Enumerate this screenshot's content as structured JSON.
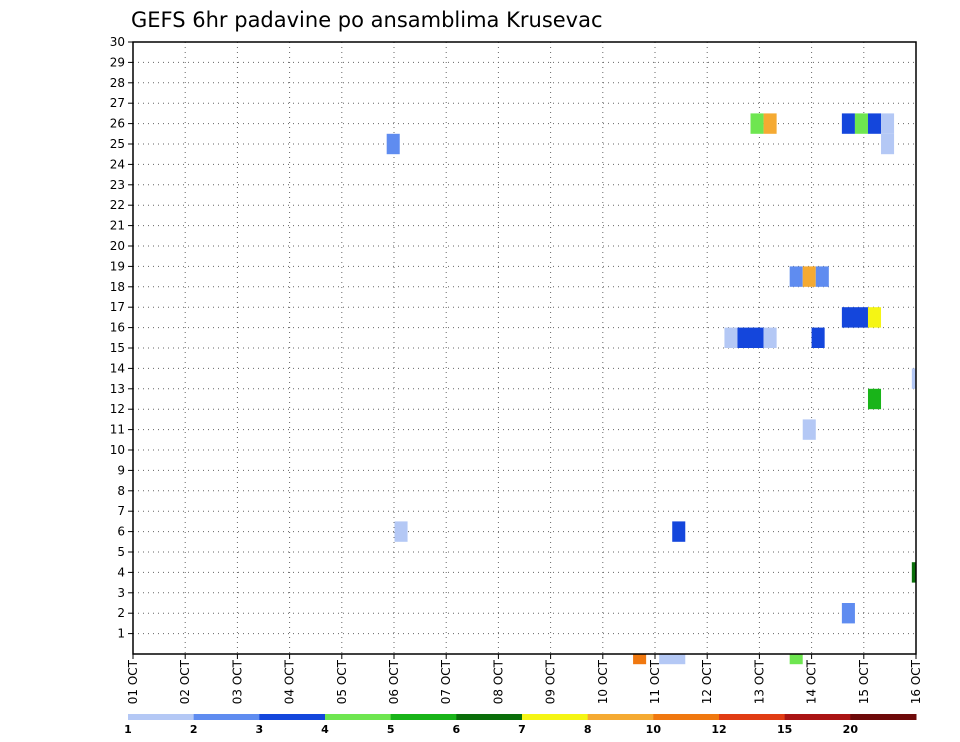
{
  "chart_data": {
    "type": "heatmap",
    "title": "GEFS 6hr padavine po ansamblima Krusevac",
    "xlabel": "",
    "ylabel": "",
    "x_tick_labels": [
      "01 OCT",
      "02 OCT",
      "03 OCT",
      "04 OCT",
      "05 OCT",
      "06 OCT",
      "07 OCT",
      "08 OCT",
      "09 OCT",
      "10 OCT",
      "11 OCT",
      "12 OCT",
      "13 OCT",
      "14 OCT",
      "15 OCT",
      "16 OCT"
    ],
    "y_tick_labels": [
      "1",
      "2",
      "3",
      "4",
      "5",
      "6",
      "7",
      "8",
      "9",
      "10",
      "11",
      "12",
      "13",
      "14",
      "15",
      "16",
      "17",
      "18",
      "19",
      "20",
      "21",
      "22",
      "23",
      "24",
      "25",
      "26",
      "27",
      "28",
      "29",
      "30"
    ],
    "xlim": [
      "01 OCT 00Z",
      "16 OCT 00Z"
    ],
    "ylim": [
      0,
      30
    ],
    "grid": true,
    "legend": {
      "placement": "bottom",
      "colors": [
        "#b4c8f5",
        "#5f8cf0",
        "#1446dc",
        "#6ee650",
        "#19b419",
        "#0a6e0a",
        "#f5f514",
        "#f5aa32",
        "#f0780f",
        "#e13c14",
        "#aa1414",
        "#6e0a0a"
      ],
      "labels": [
        "1",
        "2",
        "3",
        "4",
        "5",
        "6",
        "7",
        "8",
        "10",
        "12",
        "15",
        "20"
      ]
    },
    "cells": [
      {
        "day": 5.86,
        "member": 25,
        "width": 0.25,
        "height": 1,
        "color": "#5f8cf0"
      },
      {
        "day": 6.01,
        "member": 6,
        "width": 0.25,
        "height": 1,
        "color": "#b4c8f5"
      },
      {
        "day": 10.58,
        "member": 0,
        "width": 0.25,
        "height": 0.5,
        "color": "#f0780f"
      },
      {
        "day": 11.08,
        "member": 0,
        "width": 0.5,
        "height": 0.5,
        "color": "#b4c8f5"
      },
      {
        "day": 11.33,
        "member": 6,
        "width": 0.25,
        "height": 1,
        "color": "#1446dc"
      },
      {
        "day": 12.33,
        "member": 15.5,
        "width": 0.25,
        "height": 1,
        "color": "#b4c8f5"
      },
      {
        "day": 12.58,
        "member": 15.5,
        "width": 0.5,
        "height": 1,
        "color": "#1446dc"
      },
      {
        "day": 13.08,
        "member": 15.5,
        "width": 0.25,
        "height": 1,
        "color": "#b4c8f5"
      },
      {
        "day": 12.83,
        "member": 26,
        "width": 0.25,
        "height": 1,
        "color": "#6ee650"
      },
      {
        "day": 13.08,
        "member": 26,
        "width": 0.25,
        "height": 1,
        "color": "#f5aa32"
      },
      {
        "day": 13.58,
        "member": 0,
        "width": 0.25,
        "height": 0.5,
        "color": "#6ee650"
      },
      {
        "day": 13.58,
        "member": 18.5,
        "width": 0.25,
        "height": 1,
        "color": "#5f8cf0"
      },
      {
        "day": 13.83,
        "member": 18.5,
        "width": 0.25,
        "height": 1,
        "color": "#f5aa32"
      },
      {
        "day": 14.08,
        "member": 18.5,
        "width": 0.25,
        "height": 1,
        "color": "#5f8cf0"
      },
      {
        "day": 13.83,
        "member": 11,
        "width": 0.25,
        "height": 1,
        "color": "#b4c8f5"
      },
      {
        "day": 14.0,
        "member": 15.5,
        "width": 0.25,
        "height": 1,
        "color": "#1446dc"
      },
      {
        "day": 14.58,
        "member": 2,
        "width": 0.25,
        "height": 1,
        "color": "#5f8cf0"
      },
      {
        "day": 14.58,
        "member": 16.5,
        "width": 0.5,
        "height": 1,
        "color": "#1446dc"
      },
      {
        "day": 15.08,
        "member": 16.5,
        "width": 0.25,
        "height": 1,
        "color": "#f5f514"
      },
      {
        "day": 15.08,
        "member": 12.5,
        "width": 0.25,
        "height": 1,
        "color": "#19b419"
      },
      {
        "day": 14.58,
        "member": 26,
        "width": 0.25,
        "height": 1,
        "color": "#1446dc"
      },
      {
        "day": 14.83,
        "member": 26,
        "width": 0.25,
        "height": 1,
        "color": "#6ee650"
      },
      {
        "day": 15.08,
        "member": 26,
        "width": 0.25,
        "height": 1,
        "color": "#1446dc"
      },
      {
        "day": 15.33,
        "member": 26,
        "width": 0.25,
        "height": 1,
        "color": "#b4c8f5"
      },
      {
        "day": 15.33,
        "member": 25,
        "width": 0.25,
        "height": 1,
        "color": "#b4c8f5"
      },
      {
        "day": 15.92,
        "member": 13.5,
        "width": 0.08,
        "height": 1,
        "color": "#b4c8f5"
      },
      {
        "day": 15.92,
        "member": 4,
        "width": 0.08,
        "height": 1,
        "color": "#0a6e0a"
      }
    ]
  }
}
